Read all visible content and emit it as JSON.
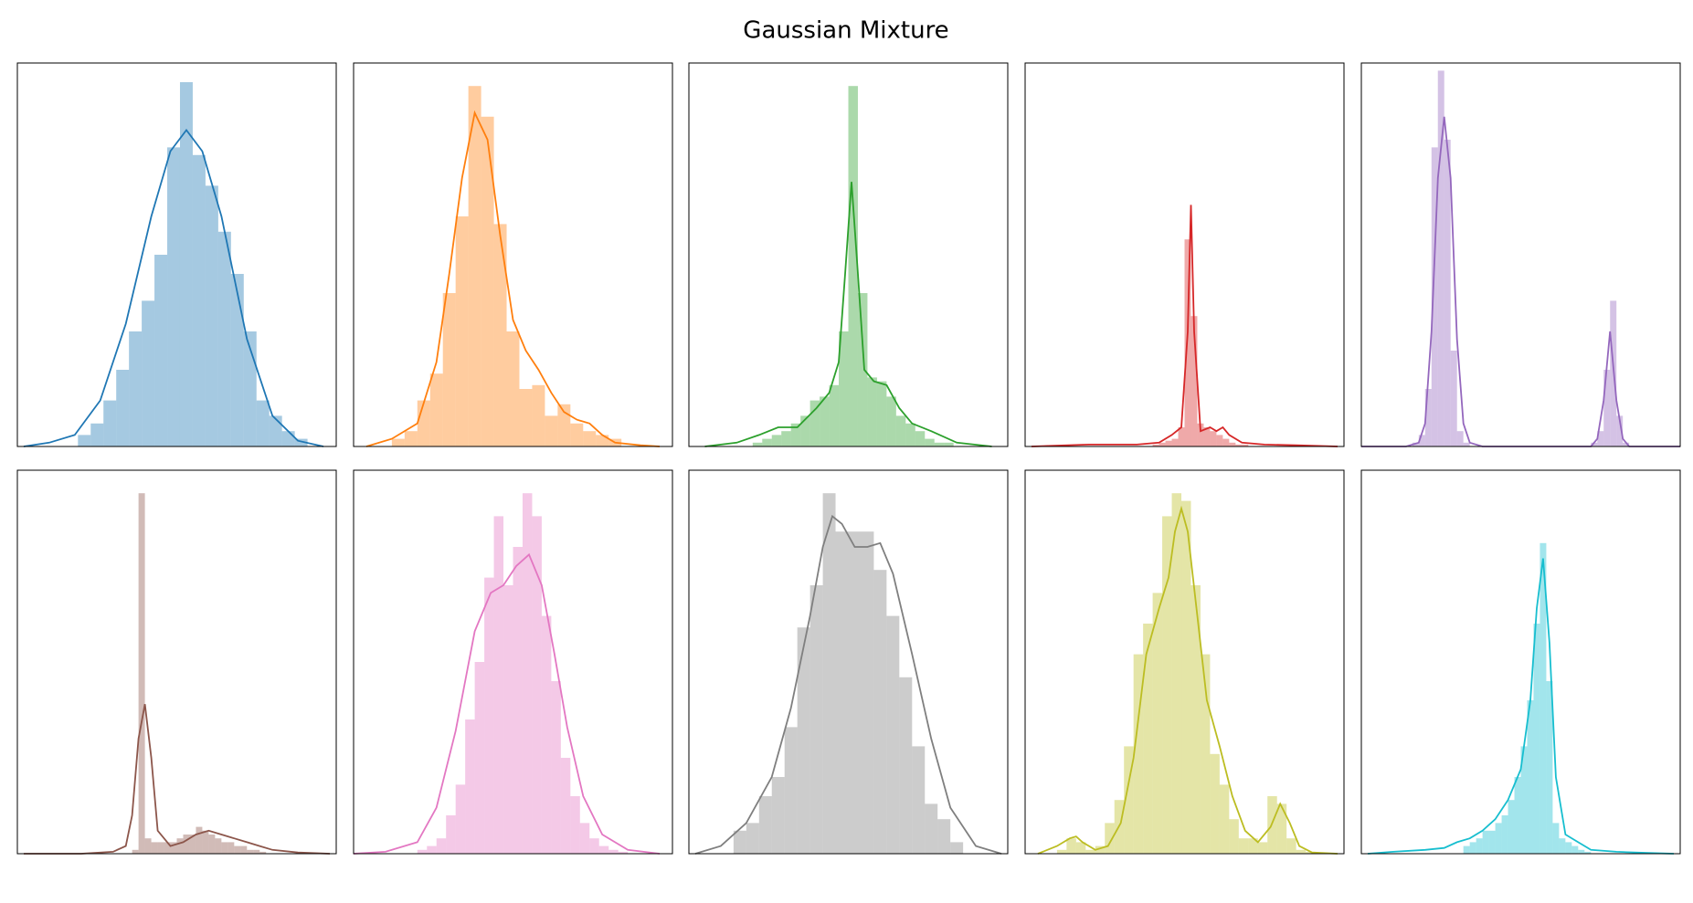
{
  "title": "Gaussian Mixture",
  "chart_data": [
    {
      "type": "histogram",
      "color": "#1f77b4",
      "xlim": [
        0,
        100
      ],
      "ylim": [
        0,
        100
      ],
      "bins": [
        19,
        23,
        27,
        31,
        35,
        39,
        43,
        47,
        51,
        55,
        59,
        63,
        67,
        71,
        75,
        79,
        83,
        87,
        91
      ],
      "counts": [
        3,
        6,
        12,
        20,
        30,
        38,
        50,
        78,
        95,
        76,
        68,
        56,
        45,
        30,
        12,
        8,
        4,
        2
      ],
      "kde": {
        "x": [
          2,
          10,
          18,
          26,
          34,
          42,
          48,
          53,
          58,
          64,
          72,
          80,
          88,
          96
        ],
        "y": [
          0,
          1,
          3,
          12,
          32,
          60,
          77,
          82.5,
          77,
          60,
          28,
          8,
          1.5,
          0
        ]
      }
    },
    {
      "type": "histogram",
      "color": "#ff7f0e",
      "xlim": [
        0,
        100
      ],
      "ylim": [
        0,
        100
      ],
      "bins": [
        12,
        16,
        20,
        24,
        28,
        32,
        36,
        40,
        44,
        48,
        52,
        56,
        60,
        64,
        68,
        72,
        76,
        80,
        84
      ],
      "counts": [
        2,
        4,
        12,
        19,
        40,
        60,
        94,
        86,
        58,
        30,
        15,
        16,
        8,
        11,
        6,
        4,
        3,
        2
      ],
      "kde": {
        "x": [
          4,
          12,
          20,
          26,
          30,
          34,
          38,
          42,
          46,
          50,
          54,
          58,
          62,
          66,
          70,
          74,
          78,
          82,
          90,
          96
        ],
        "y": [
          0,
          2,
          6,
          22,
          45,
          70,
          87,
          80,
          55,
          33,
          25,
          20,
          14,
          9,
          7,
          6,
          3,
          1,
          0.3,
          0
        ]
      }
    },
    {
      "type": "histogram",
      "color": "#2ca02c",
      "xlim": [
        0,
        100
      ],
      "ylim": [
        0,
        100
      ],
      "bins": [
        20,
        23,
        26,
        29,
        32,
        35,
        38,
        41,
        44,
        47,
        50,
        53,
        56,
        59,
        62,
        65,
        68,
        71,
        74,
        77,
        80,
        83
      ],
      "counts": [
        1,
        2,
        3,
        4,
        6,
        8,
        12,
        13,
        16,
        30,
        94,
        40,
        18,
        17,
        13,
        8,
        6,
        4,
        2,
        1,
        1
      ],
      "kde": {
        "x": [
          5,
          15,
          22,
          28,
          34,
          40,
          44,
          47,
          49,
          51,
          53,
          55,
          58,
          62,
          66,
          70,
          76,
          84,
          95
        ],
        "y": [
          0,
          1,
          3,
          5,
          5,
          10,
          14,
          22,
          45,
          69,
          45,
          20,
          17,
          16,
          10,
          6,
          4,
          1,
          0
        ]
      }
    },
    {
      "type": "histogram",
      "color": "#d62728",
      "xlim": [
        0,
        100
      ],
      "ylim": [
        0,
        100
      ],
      "bins": [
        40,
        42,
        44,
        46,
        48,
        50,
        52,
        54,
        56,
        58,
        60,
        62,
        64,
        66,
        68,
        70
      ],
      "counts": [
        0.5,
        1,
        1.5,
        2,
        5,
        54,
        34,
        6,
        5,
        4,
        3,
        2,
        1,
        0.5,
        0.5
      ],
      "kde": {
        "x": [
          2,
          20,
          35,
          42,
          46,
          49,
          51,
          52,
          53,
          55,
          58,
          60,
          62,
          64,
          68,
          75,
          85,
          98
        ],
        "y": [
          0,
          0.5,
          0.5,
          1,
          3,
          5,
          30,
          63,
          30,
          4,
          5,
          4,
          5,
          3,
          1,
          0.5,
          0.3,
          0
        ]
      }
    },
    {
      "type": "histogram",
      "color": "#9467bd",
      "xlim": [
        0,
        100
      ],
      "ylim": [
        0,
        100
      ],
      "bins": [
        16,
        18,
        20,
        22,
        24,
        26,
        28,
        30,
        32,
        34,
        36,
        38,
        40,
        42,
        44,
        46,
        48,
        50,
        52,
        54,
        56,
        58,
        60,
        62,
        64,
        66,
        68,
        70,
        72,
        74,
        76,
        78,
        80,
        82,
        84
      ],
      "counts": [
        1,
        3,
        15,
        78,
        98,
        80,
        25,
        4,
        1,
        0,
        0,
        0,
        0,
        0,
        0,
        0,
        0,
        0,
        0,
        0,
        0,
        0,
        0,
        0,
        0,
        0,
        0,
        0,
        1,
        4,
        20,
        38,
        8,
        1
      ],
      "kde": {
        "x": [
          0,
          14,
          18,
          20,
          22,
          24,
          26,
          28,
          30,
          32,
          34,
          38,
          50,
          66,
          72,
          74,
          76,
          78,
          80,
          82,
          84,
          100
        ],
        "y": [
          0,
          0,
          1,
          6,
          30,
          70,
          86,
          70,
          28,
          6,
          1,
          0,
          0,
          0,
          0,
          2,
          12,
          30,
          12,
          2,
          0,
          0
        ]
      }
    },
    {
      "type": "histogram",
      "color": "#8c564b",
      "xlim": [
        0,
        100
      ],
      "ylim": [
        0,
        100
      ],
      "bins": [
        36,
        38,
        40,
        42,
        44,
        46,
        48,
        50,
        52,
        54,
        56,
        58,
        60,
        62,
        64,
        66,
        68,
        70,
        72,
        74,
        76,
        78
      ],
      "counts": [
        1,
        94,
        4,
        3,
        3,
        3,
        3,
        4,
        5,
        5,
        7,
        6,
        5,
        4,
        3,
        3,
        2,
        2,
        1,
        1,
        0.5
      ],
      "kde": {
        "x": [
          2,
          20,
          30,
          34,
          36,
          38,
          40,
          42,
          44,
          48,
          52,
          56,
          60,
          64,
          68,
          72,
          76,
          80,
          88,
          98
        ],
        "y": [
          0,
          0,
          0.5,
          2,
          10,
          30,
          39,
          25,
          6,
          2,
          3,
          5,
          6,
          5,
          4,
          3,
          2,
          1,
          0.3,
          0
        ]
      }
    },
    {
      "type": "histogram",
      "color": "#e377c2",
      "xlim": [
        0,
        100
      ],
      "ylim": [
        0,
        100
      ],
      "bins": [
        20,
        23,
        26,
        29,
        32,
        35,
        38,
        41,
        44,
        47,
        50,
        53,
        56,
        59,
        62,
        65,
        68,
        71,
        74,
        77,
        80,
        83,
        86
      ],
      "counts": [
        1,
        2,
        4,
        10,
        18,
        35,
        50,
        72,
        88,
        70,
        80,
        94,
        88,
        62,
        45,
        25,
        15,
        8,
        4,
        2,
        1,
        0.5
      ],
      "kde": {
        "x": [
          0,
          10,
          20,
          26,
          32,
          38,
          43,
          47,
          51,
          55,
          59,
          63,
          67,
          72,
          78,
          86,
          96
        ],
        "y": [
          0,
          0.5,
          3,
          12,
          32,
          58,
          68,
          70,
          75,
          78,
          70,
          52,
          33,
          15,
          5,
          1,
          0
        ]
      }
    },
    {
      "type": "histogram",
      "color": "#7f7f7f",
      "xlim": [
        0,
        100
      ],
      "ylim": [
        0,
        100
      ],
      "bins": [
        14,
        18,
        22,
        26,
        30,
        34,
        38,
        42,
        46,
        50,
        54,
        58,
        62,
        66,
        70,
        74,
        78,
        82,
        86
      ],
      "counts": [
        6,
        8,
        15,
        20,
        33,
        59,
        70,
        94,
        84,
        84,
        84,
        74,
        62,
        46,
        28,
        13,
        9,
        3
      ],
      "kde": {
        "x": [
          2,
          10,
          18,
          26,
          32,
          38,
          42,
          45,
          48,
          52,
          56,
          60,
          64,
          70,
          76,
          82,
          90,
          98
        ],
        "y": [
          0,
          2,
          8,
          20,
          38,
          62,
          80,
          88,
          86,
          80,
          80,
          81,
          73,
          52,
          30,
          12,
          2,
          0
        ]
      }
    },
    {
      "type": "histogram",
      "color": "#bcbd22",
      "xlim": [
        0,
        100
      ],
      "ylim": [
        0,
        100
      ],
      "bins": [
        10,
        13,
        16,
        19,
        22,
        25,
        28,
        31,
        34,
        37,
        40,
        43,
        46,
        49,
        52,
        55,
        58,
        61,
        64,
        67,
        70,
        73,
        76,
        79,
        82,
        85,
        88,
        91
      ],
      "counts": [
        1,
        4,
        3,
        1,
        2,
        8,
        14,
        28,
        52,
        60,
        68,
        88,
        94,
        92,
        70,
        52,
        26,
        18,
        9,
        4,
        4,
        3,
        15,
        13,
        4,
        1,
        0.5
      ],
      "kde": {
        "x": [
          4,
          10,
          14,
          16,
          18,
          22,
          26,
          30,
          34,
          38,
          42,
          45,
          47,
          49,
          51,
          54,
          57,
          61,
          65,
          69,
          73,
          77,
          80,
          83,
          86,
          90,
          98
        ],
        "y": [
          0,
          2,
          4,
          4.5,
          3,
          1,
          2,
          8,
          25,
          52,
          64,
          72,
          84,
          90,
          84,
          62,
          40,
          28,
          15,
          6,
          3,
          7,
          13,
          8,
          2,
          0.3,
          0
        ]
      }
    },
    {
      "type": "histogram",
      "color": "#17becf",
      "xlim": [
        0,
        100
      ],
      "ylim": [
        0,
        100
      ],
      "bins": [
        32,
        34,
        36,
        38,
        40,
        42,
        44,
        46,
        48,
        50,
        52,
        54,
        56,
        58,
        60,
        62,
        64,
        66,
        68,
        70,
        72
      ],
      "counts": [
        2,
        3,
        4,
        6,
        6,
        8,
        10,
        14,
        20,
        28,
        40,
        60,
        81,
        45,
        8,
        4,
        3,
        2,
        1,
        0.5
      ],
      "kde": {
        "x": [
          2,
          10,
          20,
          26,
          30,
          34,
          38,
          42,
          46,
          50,
          53,
          55,
          57,
          59,
          61,
          64,
          68,
          72,
          80,
          90,
          98
        ],
        "y": [
          0,
          0.5,
          1,
          1.5,
          3,
          4,
          6,
          9,
          14,
          22,
          40,
          64,
          77,
          55,
          20,
          5,
          3,
          1,
          0.5,
          0.2,
          0
        ]
      }
    }
  ]
}
